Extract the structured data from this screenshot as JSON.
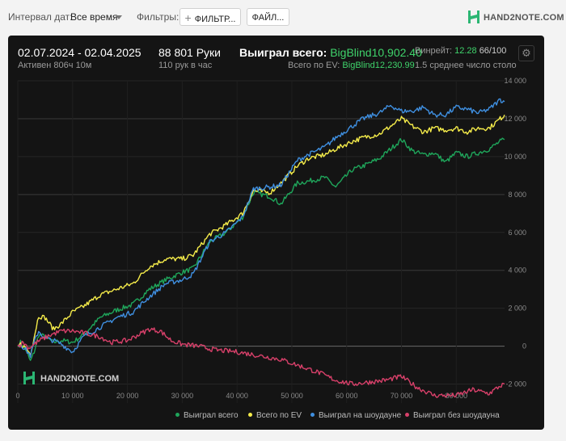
{
  "toolbar": {
    "interval_label": "Интервал дат:",
    "interval_value": "Все время",
    "filters_label": "Фильтры:",
    "filters_button": "ФИЛЬТР...",
    "files_button": "ФАЙЛ...",
    "brand": "HAND2NOTE.COM"
  },
  "summary": {
    "date_range": "02.07.2024 - 02.04.2025",
    "active": "Активен 806ч 10м",
    "hands": "88 801 Руки",
    "hands_rate": "110 рук в час",
    "won_label": "Выиграл всего:",
    "won_value": "BigBlind10,902.40",
    "ev_label": "Всего по EV:",
    "ev_value": "BigBlind12,230.99",
    "winrate_label": "Винрейт:",
    "winrate_value": "12.28",
    "winrate_extra": "66/100",
    "tables_text": "1.5 среднее число столо"
  },
  "watermark": "HAND2NOTE.COM",
  "colors": {
    "won": "#1fa65b",
    "ev": "#f5ec4a",
    "showdown": "#3f8fe0",
    "non_showdown": "#d8406a",
    "accent": "#3fd36b"
  },
  "chart_data": {
    "type": "line",
    "x_ticks": [
      "0",
      "10 000",
      "20 000",
      "30 000",
      "40 000",
      "50 000",
      "60 000",
      "70 000",
      "80 000"
    ],
    "y_ticks": [
      "14 000",
      "12 000",
      "10 000",
      "8 000",
      "6 000",
      "4 000",
      "2 000",
      "0",
      "-2 000"
    ],
    "xlim": [
      0,
      88801
    ],
    "ylim": [
      -3000,
      14000
    ],
    "grid": true,
    "legend_position": "bottom-right",
    "series": [
      {
        "name": "Выиграл всего",
        "color": "#1fa65b",
        "x": [
          0,
          500,
          1500,
          2300,
          3000,
          3800,
          5000,
          6500,
          8000,
          10000,
          12000,
          15000,
          18000,
          21000,
          24000,
          27000,
          30000,
          32000,
          35000,
          38000,
          41000,
          43000,
          46000,
          48000,
          51000,
          53000,
          56000,
          58000,
          61000,
          63000,
          66000,
          68000,
          70000,
          72000,
          74000,
          76000,
          78000,
          80000,
          82000,
          84000,
          86000,
          88000,
          88801
        ],
        "y": [
          0,
          200,
          -200,
          -800,
          -300,
          600,
          500,
          200,
          300,
          200,
          600,
          1500,
          1900,
          2200,
          3000,
          3500,
          3900,
          4100,
          5500,
          6000,
          6800,
          8100,
          7900,
          7500,
          8600,
          8700,
          8900,
          8400,
          9300,
          9500,
          9900,
          10400,
          10900,
          10300,
          10100,
          10200,
          9700,
          10200,
          10000,
          10200,
          10400,
          10800,
          10900
        ]
      },
      {
        "name": "Всего по EV",
        "color": "#f5ec4a",
        "x": [
          0,
          500,
          1500,
          2300,
          3000,
          3800,
          5000,
          6500,
          8000,
          10000,
          12000,
          15000,
          18000,
          21000,
          24000,
          27000,
          30000,
          32000,
          35000,
          38000,
          41000,
          43000,
          46000,
          48000,
          51000,
          53000,
          56000,
          58000,
          61000,
          63000,
          66000,
          68000,
          70000,
          72000,
          74000,
          76000,
          78000,
          80000,
          82000,
          84000,
          86000,
          88000,
          88801
        ],
        "y": [
          0,
          100,
          -100,
          -400,
          500,
          1600,
          1500,
          900,
          1200,
          1800,
          2100,
          2700,
          3000,
          3300,
          4200,
          4600,
          4600,
          4800,
          5900,
          6400,
          7000,
          8200,
          8100,
          8600,
          9500,
          9900,
          10100,
          10400,
          10800,
          11000,
          11200,
          11600,
          12000,
          11600,
          11300,
          11500,
          11400,
          11500,
          11300,
          11500,
          11500,
          12000,
          12200
        ]
      },
      {
        "name": "Выиграл на шоудауне",
        "color": "#3f8fe0",
        "x": [
          0,
          500,
          1500,
          2300,
          3000,
          3800,
          5000,
          6500,
          8000,
          10000,
          12000,
          15000,
          18000,
          21000,
          24000,
          27000,
          30000,
          32000,
          35000,
          38000,
          41000,
          43000,
          46000,
          48000,
          51000,
          53000,
          56000,
          58000,
          61000,
          63000,
          66000,
          68000,
          70000,
          72000,
          74000,
          76000,
          78000,
          80000,
          82000,
          84000,
          86000,
          88000,
          88801
        ],
        "y": [
          0,
          100,
          -200,
          -500,
          200,
          800,
          400,
          300,
          100,
          -300,
          500,
          1000,
          1500,
          1800,
          2600,
          3300,
          3500,
          3800,
          5500,
          6000,
          6800,
          8300,
          8400,
          8500,
          9800,
          10100,
          10500,
          11000,
          11600,
          12000,
          12300,
          12700,
          12400,
          12400,
          12600,
          12200,
          12200,
          12600,
          12500,
          12300,
          12500,
          13000,
          12900
        ]
      },
      {
        "name": "Выиграл без шоудауна",
        "color": "#d8406a",
        "x": [
          0,
          1000,
          2000,
          3000,
          4000,
          6000,
          8000,
          10000,
          12000,
          15000,
          17000,
          20000,
          22000,
          24000,
          26000,
          28000,
          30000,
          33000,
          36000,
          40000,
          44000,
          48000,
          52000,
          55000,
          58000,
          61000,
          64000,
          67000,
          70000,
          73000,
          76000,
          80000,
          83000,
          86000,
          88000,
          88801
        ],
        "y": [
          0,
          200,
          -100,
          100,
          300,
          600,
          800,
          800,
          700,
          500,
          200,
          300,
          600,
          900,
          800,
          300,
          100,
          0,
          -200,
          -300,
          -500,
          -700,
          -1100,
          -1400,
          -1800,
          -2000,
          -1900,
          -1800,
          -1600,
          -2200,
          -2600,
          -2600,
          -2300,
          -2500,
          -2100,
          -2000
        ]
      }
    ]
  }
}
